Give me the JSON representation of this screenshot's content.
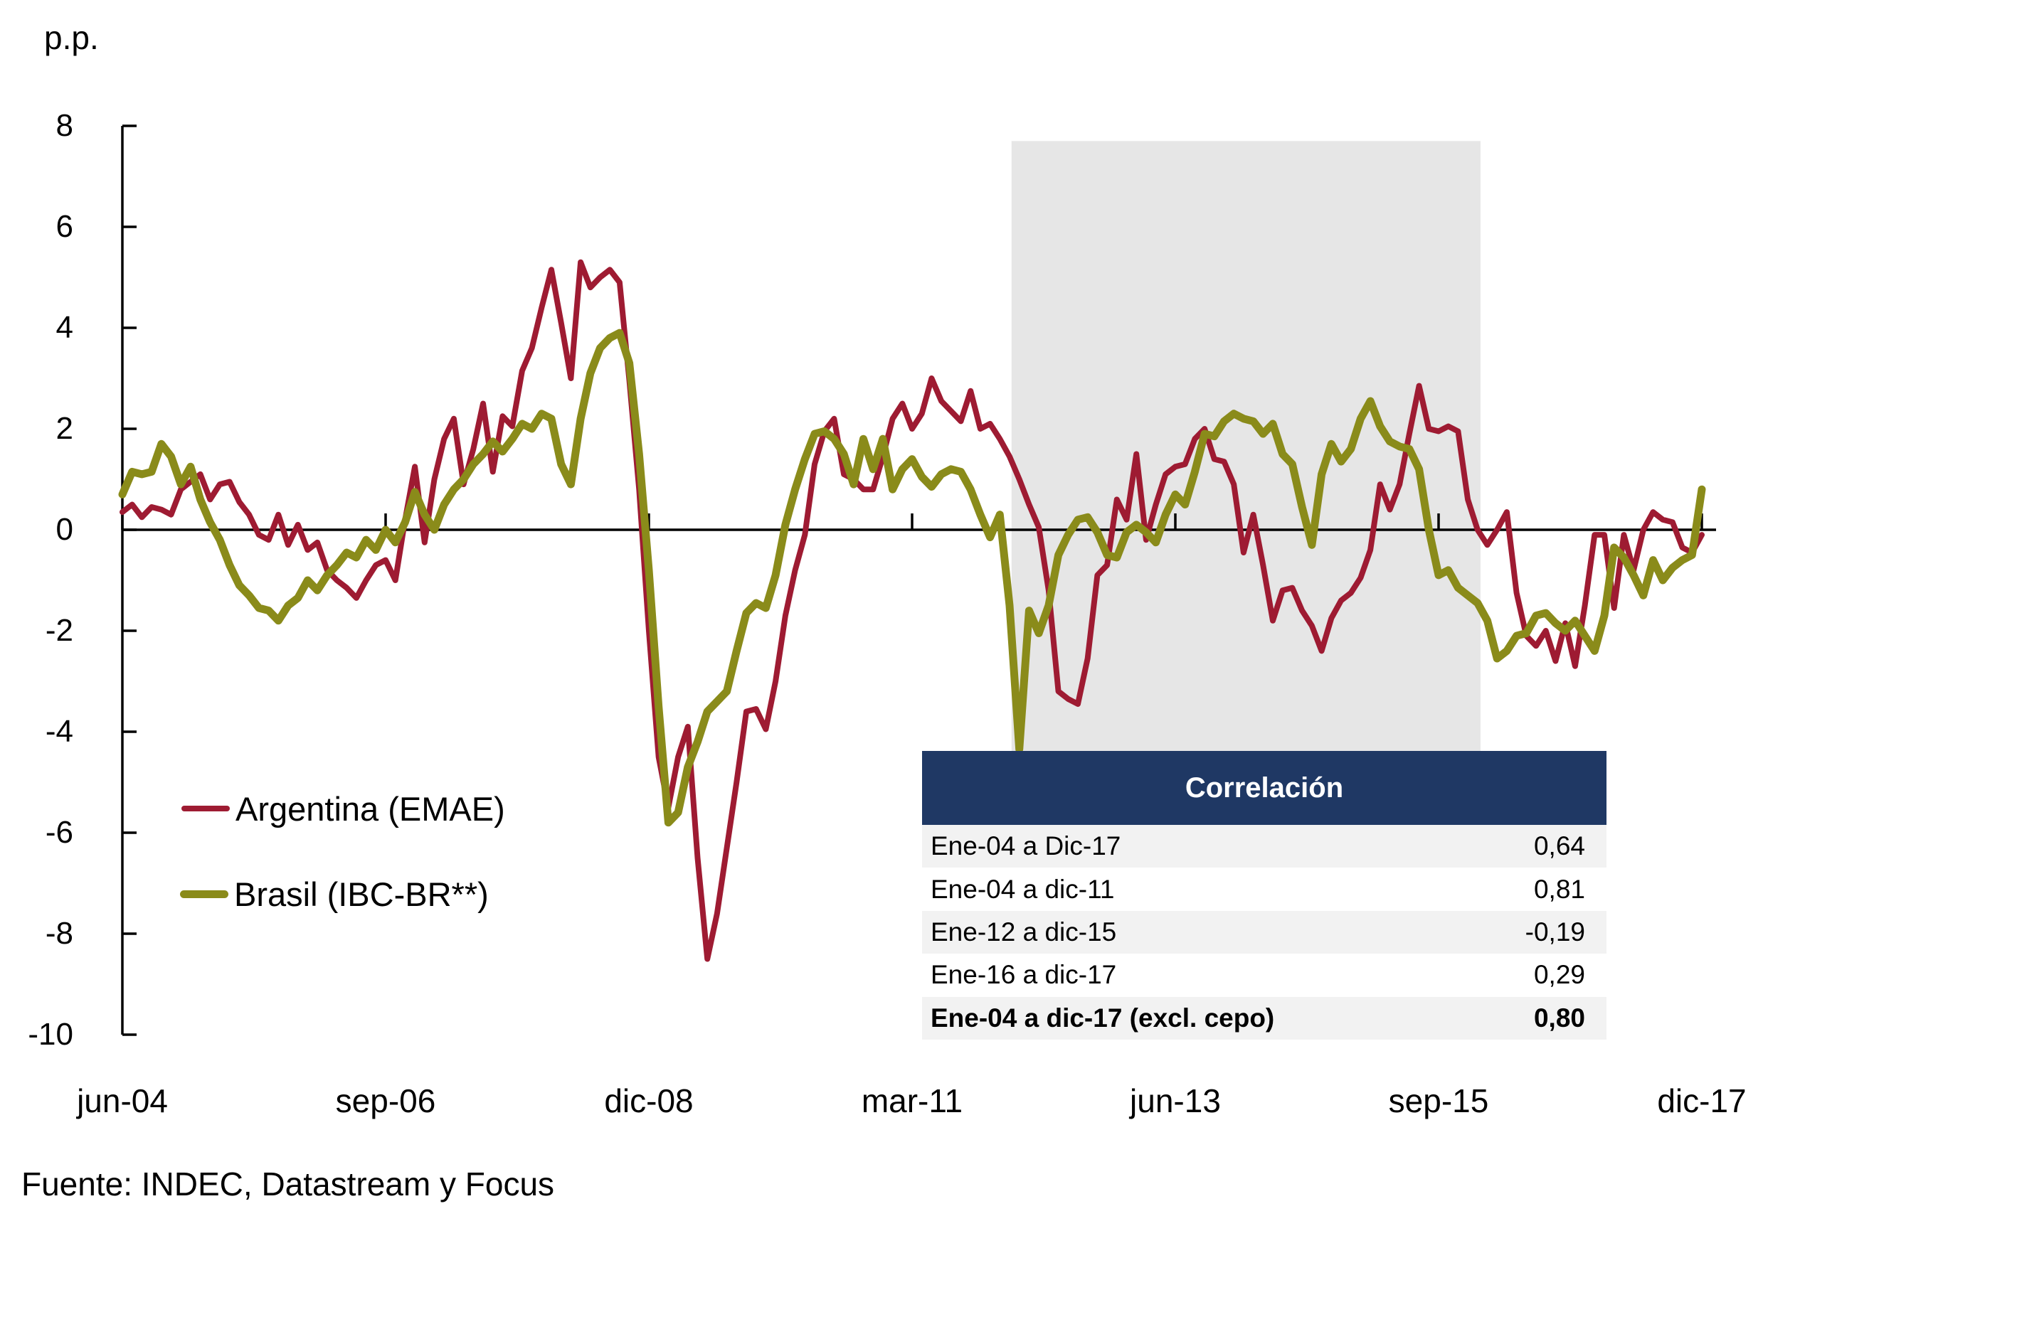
{
  "page": {
    "background": "#FFFFFF"
  },
  "y_axis": {
    "label": "p.p.",
    "tick_labels": [
      "8",
      "6",
      "4",
      "2",
      "0",
      "-2",
      "-4",
      "-6",
      "-8",
      "-10"
    ],
    "tick_values": [
      8,
      6,
      4,
      2,
      0,
      -2,
      -4,
      -6,
      -8,
      -10
    ],
    "max": 8,
    "min": -10
  },
  "x_axis": {
    "tick_labels": [
      "jun-04",
      "sep-06",
      "dic-08",
      "mar-11",
      "jun-13",
      "sep-15",
      "dic-17"
    ],
    "months_per_tick": 27
  },
  "legend": {
    "items": [
      {
        "label": "Argentina (EMAE)",
        "color": "#9E1B32"
      },
      {
        "label": "Brasil (IBC-BR**)",
        "color": "#8A8B1A"
      }
    ]
  },
  "source_note": "Fuente: INDEC, Datastream y Focus",
  "correlation_table": {
    "title": "Correlación",
    "header_bg": "#1F3864",
    "header_text_color": "#FFFFFF",
    "stripe_color": "#F2F2F2",
    "rows": [
      {
        "label": "Ene-04 a Dic-17",
        "value": "0,64",
        "bold": false
      },
      {
        "label": "Ene-04 a dic-11",
        "value": "0,81",
        "bold": false
      },
      {
        "label": "Ene-12 a dic-15",
        "value": "-0,19",
        "bold": false
      },
      {
        "label": "Ene-16 a dic-17",
        "value": "0,29",
        "bold": false
      },
      {
        "label": "Ene-04 a dic-17 (excl. cepo)",
        "value": "0,80",
        "bold": true
      }
    ]
  },
  "chart_data": {
    "type": "line",
    "title": "",
    "xlabel": "",
    "ylabel": "p.p.",
    "ylim": [
      -10,
      8
    ],
    "grid": false,
    "legend_position": "left-middle",
    "x_start": "jun-2004",
    "x_end": "dic-2017",
    "x_frequency": "monthly",
    "x_tick_labels": [
      "jun-04",
      "sep-06",
      "dic-08",
      "mar-11",
      "jun-13",
      "sep-15",
      "dic-17"
    ],
    "shaded_region": {
      "description": "gray band (cepo period)",
      "from_month": "ene-2012",
      "to_month": "ene-2016",
      "from_index": 91.2,
      "to_index": 139.3,
      "top_value": 7.7,
      "bottom_value": -4.4,
      "color": "#E6E6E6"
    },
    "series": [
      {
        "name": "Argentina (EMAE)",
        "color": "#9E1B32",
        "line_width": 8,
        "values": [
          0.35,
          0.5,
          0.25,
          0.45,
          0.4,
          0.3,
          0.8,
          0.95,
          1.1,
          0.6,
          0.9,
          0.95,
          0.55,
          0.3,
          -0.1,
          -0.2,
          0.3,
          -0.3,
          0.1,
          -0.4,
          -0.25,
          -0.8,
          -1.0,
          -1.15,
          -1.35,
          -1.0,
          -0.7,
          -0.6,
          -1.0,
          0.2,
          1.25,
          -0.25,
          1.0,
          1.8,
          2.2,
          0.9,
          1.6,
          2.5,
          1.15,
          2.25,
          2.05,
          3.15,
          3.6,
          4.4,
          5.15,
          4.1,
          3.0,
          5.3,
          4.8,
          5.0,
          5.15,
          4.9,
          2.95,
          0.8,
          -2.0,
          -4.5,
          -5.5,
          -4.5,
          -3.9,
          -6.5,
          -8.5,
          -7.6,
          -6.3,
          -5.0,
          -3.6,
          -3.55,
          -3.95,
          -3.0,
          -1.7,
          -0.8,
          -0.1,
          1.3,
          1.95,
          2.2,
          1.1,
          1.0,
          0.8,
          0.8,
          1.45,
          2.2,
          2.5,
          2.0,
          2.3,
          3.0,
          2.55,
          2.35,
          2.15,
          2.75,
          2.0,
          2.1,
          1.8,
          1.45,
          1.0,
          0.5,
          0.05,
          -1.2,
          -3.2,
          -3.35,
          -3.45,
          -2.55,
          -0.9,
          -0.7,
          0.6,
          0.2,
          1.5,
          -0.2,
          0.5,
          1.1,
          1.25,
          1.3,
          1.8,
          2.0,
          1.4,
          1.35,
          0.9,
          -0.45,
          0.3,
          -0.7,
          -1.8,
          -1.2,
          -1.15,
          -1.6,
          -1.9,
          -2.4,
          -1.75,
          -1.4,
          -1.25,
          -0.95,
          -0.4,
          0.9,
          0.4,
          0.9,
          1.9,
          2.85,
          2.0,
          1.95,
          2.05,
          1.95,
          0.6,
          0.0,
          -0.3,
          0.0,
          0.35,
          -1.25,
          -2.1,
          -2.3,
          -2.0,
          -2.6,
          -1.85,
          -2.7,
          -1.5,
          -0.1,
          -0.1,
          -1.55,
          -0.1,
          -0.8,
          0.0,
          0.35,
          0.2,
          0.15,
          -0.35,
          -0.45,
          -0.1
        ]
      },
      {
        "name": "Brasil (IBC-BR**)",
        "color": "#8A8B1A",
        "line_width": 11,
        "values": [
          0.7,
          1.15,
          1.1,
          1.15,
          1.7,
          1.45,
          0.9,
          1.25,
          0.6,
          0.15,
          -0.2,
          -0.7,
          -1.1,
          -1.3,
          -1.55,
          -1.6,
          -1.8,
          -1.5,
          -1.35,
          -1.0,
          -1.2,
          -0.9,
          -0.7,
          -0.45,
          -0.55,
          -0.2,
          -0.4,
          0.0,
          -0.25,
          0.15,
          0.75,
          0.3,
          0.0,
          0.5,
          0.8,
          1.0,
          1.3,
          1.5,
          1.75,
          1.55,
          1.8,
          2.1,
          2.0,
          2.3,
          2.2,
          1.3,
          0.9,
          2.2,
          3.1,
          3.6,
          3.8,
          3.9,
          3.3,
          1.5,
          -0.8,
          -3.5,
          -5.8,
          -5.6,
          -4.7,
          -4.2,
          -3.6,
          -3.4,
          -3.2,
          -2.4,
          -1.65,
          -1.45,
          -1.55,
          -0.9,
          0.1,
          0.8,
          1.4,
          1.9,
          1.95,
          1.8,
          1.5,
          0.9,
          1.8,
          1.2,
          1.8,
          0.8,
          1.2,
          1.4,
          1.05,
          0.85,
          1.1,
          1.2,
          1.15,
          0.8,
          0.3,
          -0.15,
          0.3,
          -1.5,
          -4.35,
          -1.6,
          -2.05,
          -1.5,
          -0.5,
          -0.1,
          0.2,
          0.25,
          -0.05,
          -0.5,
          -0.55,
          -0.05,
          0.1,
          -0.05,
          -0.25,
          0.3,
          0.7,
          0.5,
          1.15,
          1.9,
          1.85,
          2.15,
          2.3,
          2.2,
          2.15,
          1.9,
          2.1,
          1.5,
          1.3,
          0.45,
          -0.3,
          1.1,
          1.7,
          1.35,
          1.6,
          2.2,
          2.55,
          2.05,
          1.75,
          1.65,
          1.6,
          1.2,
          0.0,
          -0.9,
          -0.8,
          -1.15,
          -1.3,
          -1.45,
          -1.8,
          -2.55,
          -2.4,
          -2.1,
          -2.05,
          -1.7,
          -1.65,
          -1.85,
          -2.0,
          -1.8,
          -2.1,
          -2.4,
          -1.7,
          -0.35,
          -0.55,
          -0.9,
          -1.3,
          -0.6,
          -1.0,
          -0.75,
          -0.6,
          -0.5,
          0.8
        ]
      }
    ]
  }
}
